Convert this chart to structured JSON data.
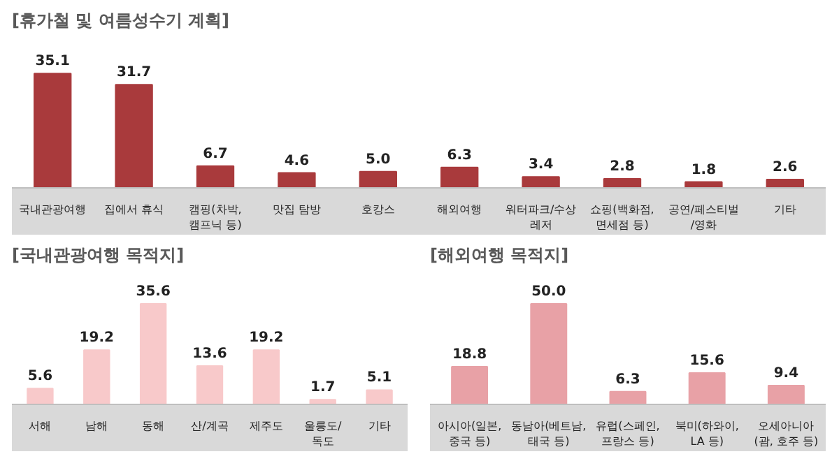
{
  "chart_data": [
    {
      "type": "bar",
      "title": "[휴가철 및 여름성수기 계획]",
      "categories": [
        "국내관광여행",
        "집에서 휴식",
        "캠핑(차박,\n캠프닉 등)",
        "맛집 탐방",
        "호캉스",
        "해외여행",
        "워터파크/수상\n레저",
        "쇼핑(백화점,\n면세점 등)",
        "공연/페스티벌\n/영화",
        "기타"
      ],
      "values": [
        35.1,
        31.7,
        6.7,
        4.6,
        5.0,
        6.3,
        3.4,
        2.8,
        1.8,
        2.6
      ],
      "color": "#a93a3c",
      "value_labels": [
        "35.1",
        "31.7",
        "6.7",
        "4.6",
        "5.0",
        "6.3",
        "3.4",
        "2.8",
        "1.8",
        "2.6"
      ]
    },
    {
      "type": "bar",
      "title": "[국내관광여행 목적지]",
      "categories": [
        "서해",
        "남해",
        "동해",
        "산/계곡",
        "제주도",
        "울릉도/\n독도",
        "기타"
      ],
      "values": [
        5.6,
        19.2,
        35.6,
        13.6,
        19.2,
        1.7,
        5.1
      ],
      "color": "#f8c9ca",
      "value_labels": [
        "5.6",
        "19.2",
        "35.6",
        "13.6",
        "19.2",
        "1.7",
        "5.1"
      ]
    },
    {
      "type": "bar",
      "title": "[해외여행 목적지]",
      "categories": [
        "아시아(일본,\n중국 등)",
        "동남아(베트남,\n태국 등)",
        "유럽(스페인,\n프랑스 등)",
        "북미(하와이,\nLA 등)",
        "오세아니아\n(괌, 호주 등)"
      ],
      "values": [
        18.8,
        50.0,
        6.3,
        15.6,
        9.4
      ],
      "color": "#e8a1a6",
      "value_labels": [
        "18.8",
        "50.0",
        "6.3",
        "15.6",
        "9.4"
      ]
    }
  ]
}
